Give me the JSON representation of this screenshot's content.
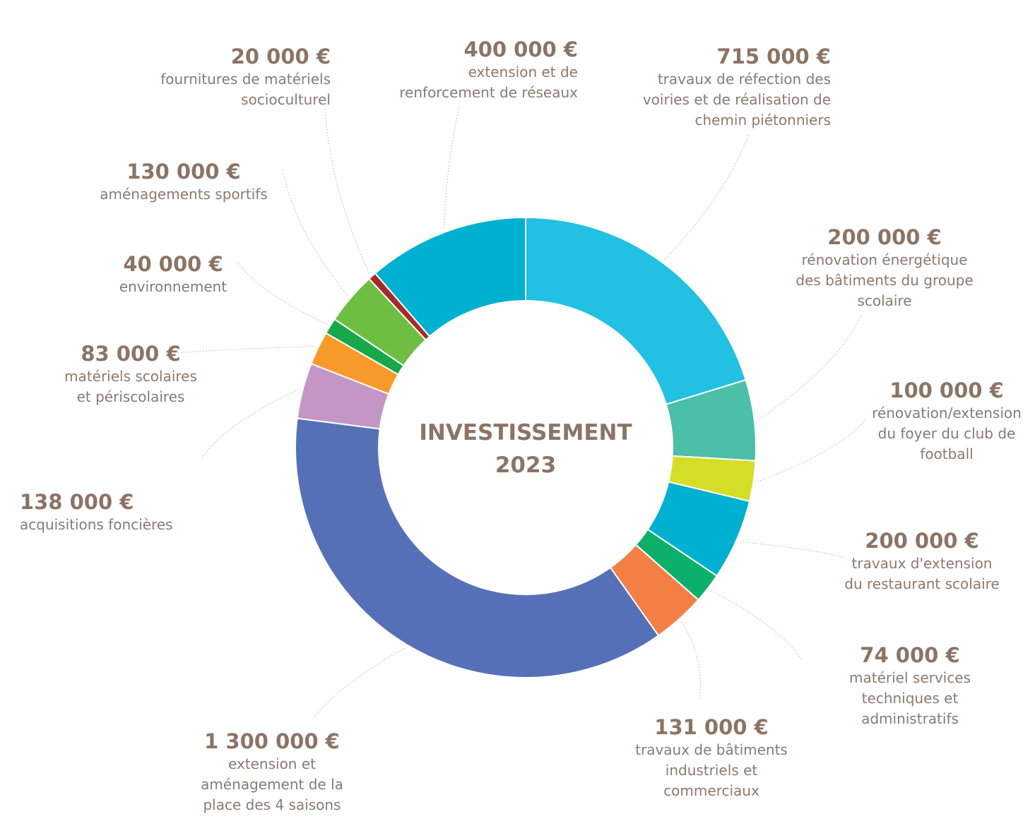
{
  "chart_data": {
    "type": "donut",
    "title": "INVESTISSEMENT\n2023",
    "categories": [
      "travaux de réfection des\nvoiries et de réalisation de\nchemin piétonniers",
      "rénovation énergétique\ndes bâtiments du groupe\nscolaire",
      "rénovation/extension\ndu foyer du club de\nfootball",
      "travaux d'extension\ndu restaurant scolaire",
      "matériel services\ntechniques et\nadministratifs",
      "travaux de bâtiments\nindustriels et\ncommerciaux",
      "extension et\naménagement de la\nplace des 4 saisons",
      "acquisitions foncières",
      "matériels scolaires\net périscolaires",
      "environnement",
      "aménagements sportifs",
      "fournitures de matériels\nsocioculturel",
      "extension et de\nrenforcement de réseaux"
    ],
    "values": [
      715000,
      200000,
      100000,
      200000,
      74000,
      131000,
      1300000,
      138000,
      83000,
      40000,
      130000,
      20000,
      400000
    ],
    "value_labels": [
      "715 000 €",
      "200 000 €",
      "100 000 €",
      "200 000 €",
      "74 000 €",
      "131 000 €",
      "1 300 000 €",
      "138 000 €",
      "83 000 €",
      "40 000 €",
      "130 000 €",
      "20 000 €",
      "400 000 €"
    ],
    "colors": [
      "#22c0e2",
      "#4bbfa8",
      "#d3de26",
      "#00b0d0",
      "#0db06a",
      "#f47f46",
      "#5670b8",
      "#c496c6",
      "#f79a2a",
      "#16a84b",
      "#6fbe44",
      "#a52a2a",
      "#00b0d0"
    ]
  }
}
